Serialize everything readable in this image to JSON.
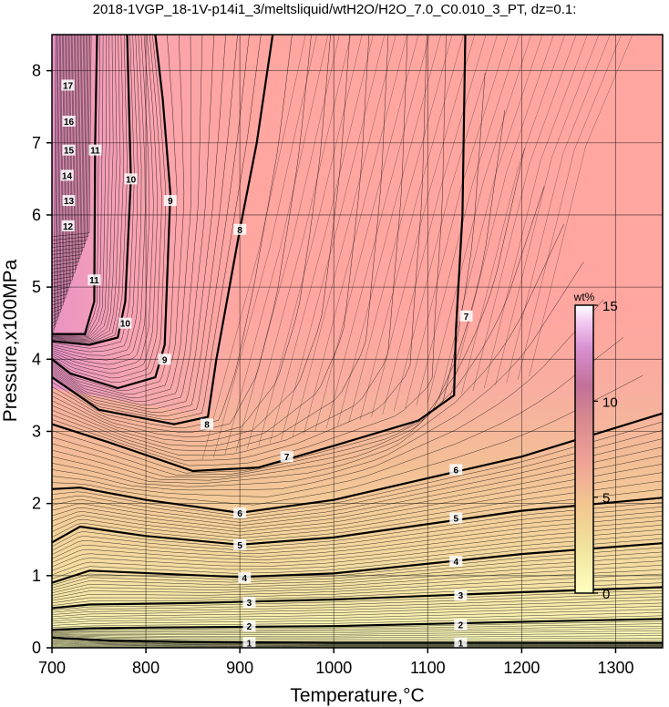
{
  "chart_data": {
    "type": "heatmap",
    "title": "2018-1VGP_18-1V-p14i1_3/meltsliquid/wtH2O/H2O_7.0_C0.010_3_PT, dz=0.1:",
    "xlabel": "Temperature,°C",
    "ylabel": "Pressure,x100MPa",
    "xlim": [
      700,
      1350
    ],
    "ylim": [
      0,
      8.5
    ],
    "x_ticks": [
      700,
      800,
      900,
      1000,
      1100,
      1200,
      1300
    ],
    "y_ticks": [
      0,
      1,
      2,
      3,
      4,
      5,
      6,
      7,
      8
    ],
    "grid": true,
    "colorbar": {
      "unit": "wt%",
      "range": [
        0,
        15
      ],
      "ticks": [
        0,
        5,
        10,
        15
      ],
      "placement": "right-inside",
      "colors": [
        "#ffffc0",
        "#f2d9a0",
        "#f0b48c",
        "#f0a0a0",
        "#e8a0c0",
        "#f5c8f0",
        "#ffffff"
      ]
    },
    "background_colors": {
      "low_left": "#ffffc0",
      "mid": "#f3bf96",
      "high": "#ffa6a0",
      "upper_left": "#f2a8c4"
    },
    "contour_labels": [
      {
        "value": "1",
        "x": 910,
        "y": 0.07
      },
      {
        "value": "1",
        "x": 1135,
        "y": 0.07
      },
      {
        "value": "2",
        "x": 910,
        "y": 0.3
      },
      {
        "value": "2",
        "x": 1135,
        "y": 0.32
      },
      {
        "value": "3",
        "x": 910,
        "y": 0.63
      },
      {
        "value": "3",
        "x": 1135,
        "y": 0.73
      },
      {
        "value": "4",
        "x": 905,
        "y": 0.97
      },
      {
        "value": "4",
        "x": 1130,
        "y": 1.2
      },
      {
        "value": "5",
        "x": 900,
        "y": 1.43
      },
      {
        "value": "5",
        "x": 1130,
        "y": 1.8
      },
      {
        "value": "6",
        "x": 900,
        "y": 1.87
      },
      {
        "value": "6",
        "x": 1130,
        "y": 2.47
      },
      {
        "value": "7",
        "x": 950,
        "y": 2.65
      },
      {
        "value": "7",
        "x": 1141,
        "y": 4.6
      },
      {
        "value": "8",
        "x": 865,
        "y": 3.1
      },
      {
        "value": "8",
        "x": 900,
        "y": 5.8
      },
      {
        "value": "9",
        "x": 820,
        "y": 4.0
      },
      {
        "value": "9",
        "x": 826,
        "y": 6.2
      },
      {
        "value": "10",
        "x": 778,
        "y": 4.5
      },
      {
        "value": "10",
        "x": 784,
        "y": 6.5
      },
      {
        "value": "11",
        "x": 745,
        "y": 5.1
      },
      {
        "value": "11",
        "x": 746,
        "y": 6.9
      },
      {
        "value": "12",
        "x": 717,
        "y": 5.85
      },
      {
        "value": "13",
        "x": 718,
        "y": 6.2
      },
      {
        "value": "14",
        "x": 716,
        "y": 6.55
      },
      {
        "value": "15",
        "x": 718,
        "y": 6.9
      },
      {
        "value": "16",
        "x": 718,
        "y": 7.3
      },
      {
        "value": "17",
        "x": 717,
        "y": 7.8
      }
    ],
    "contour_levels_major": [
      {
        "value": 1,
        "points": [
          [
            700,
            0.14
          ],
          [
            760,
            0.1
          ],
          [
            850,
            0.08
          ],
          [
            1000,
            0.07
          ],
          [
            1200,
            0.07
          ],
          [
            1350,
            0.07
          ]
        ]
      },
      {
        "value": 2,
        "points": [
          [
            700,
            0.25
          ],
          [
            740,
            0.27
          ],
          [
            800,
            0.28
          ],
          [
            1000,
            0.3
          ],
          [
            1200,
            0.36
          ],
          [
            1350,
            0.4
          ]
        ]
      },
      {
        "value": 3,
        "points": [
          [
            700,
            0.55
          ],
          [
            740,
            0.6
          ],
          [
            850,
            0.62
          ],
          [
            1000,
            0.67
          ],
          [
            1200,
            0.77
          ],
          [
            1350,
            0.84
          ]
        ]
      },
      {
        "value": 4,
        "points": [
          [
            700,
            0.9
          ],
          [
            740,
            1.07
          ],
          [
            900,
            0.98
          ],
          [
            1000,
            1.03
          ],
          [
            1200,
            1.3
          ],
          [
            1350,
            1.45
          ]
        ]
      },
      {
        "value": 5,
        "points": [
          [
            700,
            1.46
          ],
          [
            730,
            1.68
          ],
          [
            800,
            1.55
          ],
          [
            900,
            1.43
          ],
          [
            1000,
            1.53
          ],
          [
            1200,
            1.9
          ],
          [
            1350,
            2.08
          ]
        ]
      },
      {
        "value": 6,
        "points": [
          [
            700,
            2.2
          ],
          [
            730,
            2.22
          ],
          [
            800,
            2.05
          ],
          [
            900,
            1.87
          ],
          [
            1000,
            2.05
          ],
          [
            1200,
            2.65
          ],
          [
            1350,
            3.25
          ]
        ]
      },
      {
        "value": 7,
        "points": [
          [
            700,
            3.1
          ],
          [
            760,
            2.85
          ],
          [
            850,
            2.45
          ],
          [
            920,
            2.5
          ],
          [
            1000,
            2.8
          ],
          [
            1090,
            3.15
          ],
          [
            1128,
            3.5
          ],
          [
            1130,
            4.4
          ],
          [
            1137,
            6.0
          ],
          [
            1140,
            8.5
          ]
        ]
      },
      {
        "value": 8,
        "points": [
          [
            700,
            3.75
          ],
          [
            750,
            3.3
          ],
          [
            830,
            3.1
          ],
          [
            866,
            3.2
          ],
          [
            875,
            4.0
          ],
          [
            900,
            5.8
          ],
          [
            918,
            7.0
          ],
          [
            935,
            8.5
          ]
        ]
      },
      {
        "value": 9,
        "points": [
          [
            700,
            4.0
          ],
          [
            720,
            3.8
          ],
          [
            770,
            3.6
          ],
          [
            810,
            3.75
          ],
          [
            820,
            4.2
          ],
          [
            826,
            6.3
          ],
          [
            818,
            7.6
          ],
          [
            810,
            8.5
          ]
        ]
      },
      {
        "value": 10,
        "points": [
          [
            700,
            4.25
          ],
          [
            740,
            4.2
          ],
          [
            770,
            4.3
          ],
          [
            778,
            4.8
          ],
          [
            784,
            6.5
          ],
          [
            780,
            8.5
          ]
        ]
      },
      {
        "value": 11,
        "points": [
          [
            700,
            4.35
          ],
          [
            735,
            4.35
          ],
          [
            745,
            4.8
          ],
          [
            746,
            7.0
          ],
          [
            748,
            8.5
          ]
        ]
      }
    ]
  }
}
